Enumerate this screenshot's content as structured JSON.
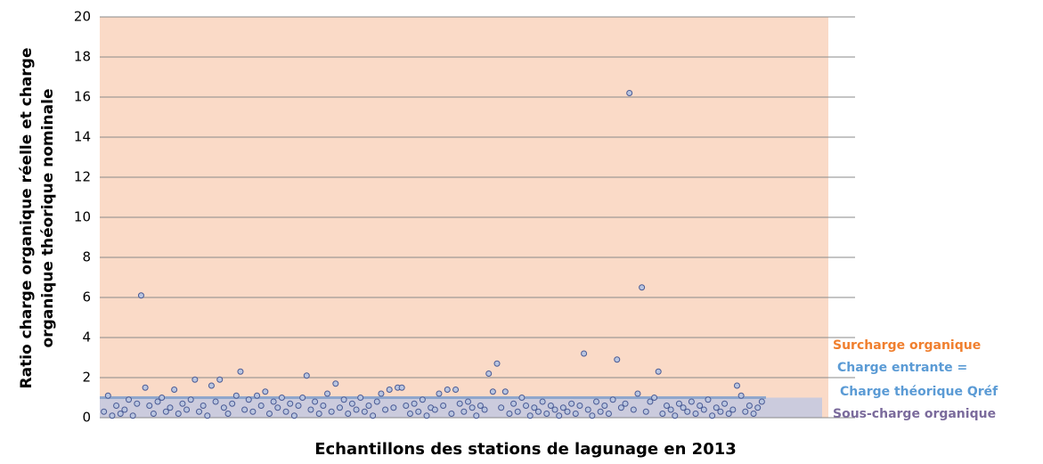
{
  "chart_data": {
    "type": "scatter",
    "ylabel": [
      "Ratio charge organique réelle et charge",
      "organique théorique nominale"
    ],
    "xlabel": "Echantillons des stations de lagunage en 2013",
    "ylim": [
      0,
      20
    ],
    "yticks": [
      0,
      2,
      4,
      6,
      8,
      10,
      12,
      14,
      16,
      18,
      20
    ],
    "grid": true,
    "xlim": [
      0,
      161
    ],
    "reference_line": 1,
    "color": "#4a5a94",
    "annotations": [
      {
        "text": "Surcharge organique",
        "color": "#f07f2e"
      },
      {
        "text": "Charge entrante =",
        "color": "#5b9bd5"
      },
      {
        "text": "Charge théorique Qréf",
        "color": "#5b9bd5"
      },
      {
        "text": "Sous-charge organique",
        "color": "#7b6b9c"
      }
    ],
    "x": [
      1,
      2,
      3,
      4,
      5,
      6,
      7,
      8,
      9,
      10,
      11,
      12,
      13,
      14,
      15,
      16,
      17,
      18,
      19,
      20,
      21,
      22,
      23,
      24,
      25,
      26,
      27,
      28,
      29,
      30,
      31,
      32,
      33,
      34,
      35,
      36,
      37,
      38,
      39,
      40,
      41,
      42,
      43,
      44,
      45,
      46,
      47,
      48,
      49,
      50,
      51,
      52,
      53,
      54,
      55,
      56,
      57,
      58,
      59,
      60,
      61,
      62,
      63,
      64,
      65,
      66,
      67,
      68,
      69,
      70,
      71,
      72,
      73,
      74,
      75,
      76,
      77,
      78,
      79,
      80,
      81,
      82,
      83,
      84,
      85,
      86,
      87,
      88,
      89,
      90,
      91,
      92,
      93,
      94,
      95,
      96,
      97,
      98,
      99,
      100,
      101,
      102,
      103,
      104,
      105,
      106,
      107,
      108,
      109,
      110,
      111,
      112,
      113,
      114,
      115,
      116,
      117,
      118,
      119,
      120,
      121,
      122,
      123,
      124,
      125,
      126,
      127,
      128,
      129,
      130,
      131,
      132,
      133,
      134,
      135,
      136,
      137,
      138,
      139,
      140,
      141,
      142,
      143,
      144,
      145,
      146,
      147,
      148,
      149,
      150,
      151,
      152,
      153,
      154,
      155,
      156,
      157,
      158,
      159,
      160
    ],
    "values": [
      0.3,
      1.1,
      0.1,
      0.6,
      0.2,
      0.4,
      0.9,
      0.1,
      0.7,
      6.1,
      1.5,
      0.6,
      0.2,
      0.8,
      1.0,
      0.3,
      0.5,
      1.4,
      0.2,
      0.7,
      0.4,
      0.9,
      1.9,
      0.3,
      0.6,
      0.1,
      1.6,
      0.8,
      1.9,
      0.5,
      0.2,
      0.7,
      1.1,
      2.3,
      0.4,
      0.9,
      0.3,
      1.1,
      0.6,
      1.3,
      0.2,
      0.8,
      0.5,
      1.0,
      0.3,
      0.7,
      0.1,
      0.6,
      1.0,
      2.1,
      0.4,
      0.8,
      0.2,
      0.6,
      1.2,
      0.3,
      1.7,
      0.5,
      0.9,
      0.2,
      0.7,
      0.4,
      1.0,
      0.3,
      0.6,
      0.1,
      0.8,
      1.2,
      0.4,
      1.4,
      0.5,
      1.5,
      1.5,
      0.6,
      0.2,
      0.7,
      0.3,
      0.9,
      0.1,
      0.5,
      0.4,
      1.2,
      0.6,
      1.4,
      0.2,
      1.4,
      0.7,
      0.3,
      0.8,
      0.5,
      0.1,
      0.6,
      0.4,
      2.2,
      1.3,
      2.7,
      0.5,
      1.3,
      0.2,
      0.7,
      0.3,
      1.0,
      0.6,
      0.1,
      0.5,
      0.3,
      0.8,
      0.2,
      0.6,
      0.4,
      0.1,
      0.5,
      0.3,
      0.7,
      0.2,
      0.6,
      3.2,
      0.4,
      0.1,
      0.8,
      0.3,
      0.6,
      0.2,
      0.9,
      2.9,
      0.5,
      0.7,
      16.2,
      0.4,
      1.2,
      6.5,
      0.3,
      0.8,
      1.0,
      2.3,
      0.2,
      0.6,
      0.4,
      0.1,
      0.7,
      0.5,
      0.3,
      0.8,
      0.2,
      0.6,
      0.4,
      0.9,
      0.1,
      0.5,
      0.3,
      0.7,
      0.2,
      0.4,
      1.6,
      1.1,
      0.3,
      0.6,
      0.2,
      0.5,
      0.8
    ]
  }
}
